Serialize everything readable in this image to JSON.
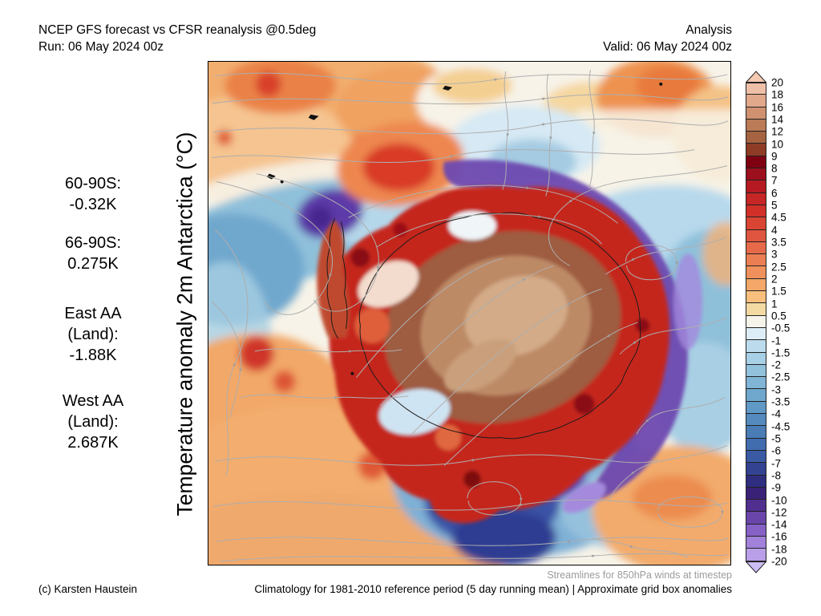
{
  "header": {
    "title_line1": "NCEP GFS forecast vs CFSR reanalysis @0.5deg",
    "title_line2": "Run: 06 May 2024 00z",
    "right_line1": "Analysis",
    "right_line2": "Valid: 06 May 2024 00z"
  },
  "axis_label": "Temperature anomaly 2m Antarctica (°C)",
  "stats": [
    {
      "lines": [
        "60-90S:",
        "-0.32K"
      ]
    },
    {
      "lines": [
        "66-90S:",
        "0.275K"
      ]
    },
    {
      "lines": [
        "East AA",
        "(Land):",
        "-1.88K"
      ]
    },
    {
      "lines": [
        "West AA",
        "(Land):",
        "2.687K"
      ]
    }
  ],
  "colorbar": {
    "ticks": [
      "20",
      "18",
      "16",
      "14",
      "12",
      "10",
      "9",
      "8",
      "7",
      "6",
      "5",
      "4.5",
      "4",
      "3.5",
      "3",
      "2.5",
      "2",
      "1.5",
      "1",
      "0.5",
      "-0.5",
      "-1",
      "-1.5",
      "-2",
      "-2.5",
      "-3",
      "-3.5",
      "-4",
      "-4.5",
      "-5",
      "-6",
      "-7",
      "-8",
      "-9",
      "-10",
      "-12",
      "-14",
      "-16",
      "-18",
      "-20"
    ],
    "cell_colors": [
      "#efc0a8",
      "#e1a88c",
      "#cf9170",
      "#bb7b57",
      "#a66342",
      "#8e3c26",
      "#7f0011",
      "#9c0f1d",
      "#b51a22",
      "#c62626",
      "#d03028",
      "#d94433",
      "#e0553f",
      "#e66a4a",
      "#ec7e54",
      "#f0905c",
      "#f4a768",
      "#f8bf7d",
      "#f3daa2",
      "#f5f3ea",
      "#dcedf7",
      "#bcdcee",
      "#a8d0e6",
      "#93c2dd",
      "#80b5d6",
      "#6fa7cd",
      "#6199c6",
      "#548abe",
      "#4a7cb6",
      "#416cae",
      "#3a5aa4",
      "#344292",
      "#2f2d80",
      "#3a2178",
      "#512f90",
      "#6b46aa",
      "#8661c6",
      "#a181da",
      "#b89fe8"
    ],
    "arrow_top_color": "#f4c9b2",
    "arrow_bottom_color": "#cebdf4"
  },
  "footer": {
    "streamline_note": "Streamlines for 850hPa winds at timestep",
    "climatology_note": "Climatology for 1981-2010 reference period (5 day running mean) | Approximate grid box anomalies",
    "copyright": "(c) Karsten Haustein"
  },
  "chart_data": {
    "type": "heatmap",
    "title": "Temperature anomaly 2m Antarctica (°C)",
    "model_comparison": "NCEP GFS forecast vs CFSR reanalysis @0.5deg",
    "run": "06 May 2024 00z",
    "mode": "Analysis",
    "valid": "06 May 2024 00z",
    "regional_mean_anomalies_K": {
      "60-90S": -0.32,
      "66-90S": 0.275,
      "East AA (Land)": -1.88,
      "West AA (Land)": 2.687
    },
    "colorbar_range_degC": [
      -20,
      20
    ],
    "overlay": "Streamlines for 850hPa winds at timestep",
    "baseline": "Climatology for 1981-2010 reference period (5 day running mean)"
  }
}
